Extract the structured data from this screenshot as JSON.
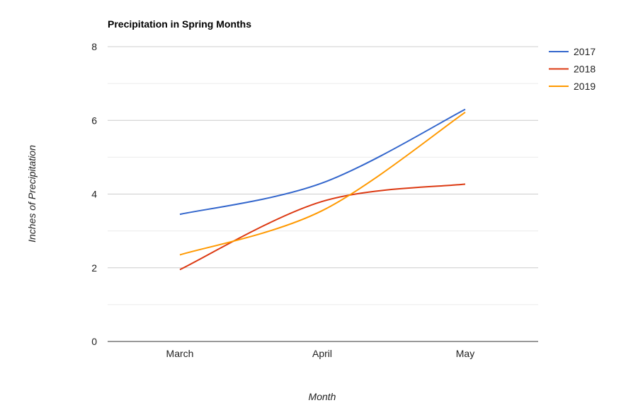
{
  "chart_data": {
    "type": "line",
    "title": "Precipitation in Spring Months",
    "xlabel": "Month",
    "ylabel": "Inches of Precipitation",
    "categories": [
      "March",
      "April",
      "May"
    ],
    "series": [
      {
        "name": "2017",
        "values": [
          3.45,
          4.3,
          6.3
        ],
        "color": "#3366cc"
      },
      {
        "name": "2018",
        "values": [
          1.95,
          3.8,
          4.27
        ],
        "color": "#dc3912"
      },
      {
        "name": "2019",
        "values": [
          2.35,
          3.55,
          6.22
        ],
        "color": "#ff9900"
      }
    ],
    "ylim": [
      0,
      8
    ],
    "yticks": [
      0,
      2,
      4,
      6,
      8
    ],
    "grid": true,
    "legend": "right",
    "smooth": true
  }
}
